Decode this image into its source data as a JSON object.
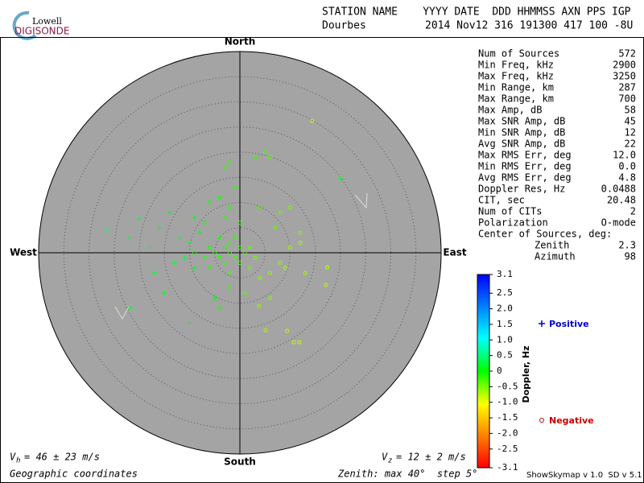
{
  "header": {
    "logo_top": "Lowell",
    "logo_bottom": "DIGISONDE",
    "columns": "STATION NAME    YYYY DATE  DDD HHMMSS AXN PPS IGP",
    "station": "Dourbes",
    "values": "2014 Nov12 316 191300 417 100 -8U"
  },
  "compass": {
    "north": "North",
    "south": "South",
    "east": "East",
    "west": "West"
  },
  "stats": [
    [
      "Num of Sources",
      "572"
    ],
    [
      "Min Freq, kHz",
      "2900"
    ],
    [
      "Max Freq, kHz",
      "3250"
    ],
    [
      "Min Range, km",
      "287"
    ],
    [
      "Max Range, km",
      "700"
    ],
    [
      "Max Amp, dB",
      "58"
    ],
    [
      "Max SNR Amp, dB",
      "45"
    ],
    [
      "Min SNR Amp, dB",
      "12"
    ],
    [
      "Avg SNR Amp, dB",
      "22"
    ],
    [
      "Max RMS Err, deg",
      "12.0"
    ],
    [
      "Min RMS Err, deg",
      "0.0"
    ],
    [
      "Avg RMS Err, deg",
      "4.8"
    ],
    [
      "Doppler Res, Hz",
      "0.0488"
    ],
    [
      "CIT, sec",
      "20.48"
    ],
    [
      "Num of CITs",
      "2"
    ],
    [
      "Polarization",
      "O-mode"
    ]
  ],
  "center": {
    "title": "Center of Sources, deg:",
    "rows": [
      [
        "Zenith",
        "2.3"
      ],
      [
        "Azimuth",
        "98"
      ]
    ]
  },
  "colorbar": {
    "label": "Doppler, Hz",
    "lim": [
      -3.1,
      3.1
    ],
    "ticks": [
      3.1,
      2.5,
      {
        "value": 2,
        "label": "2.0"
      },
      1.5,
      {
        "value": 1,
        "label": "1.0"
      },
      0.5,
      0,
      -0.5,
      {
        "value": -1,
        "label": "-1.0"
      },
      -1.5,
      {
        "value": -2,
        "label": "-2.0"
      },
      -2.5,
      -3.1
    ]
  },
  "legend": {
    "positive": "Positive",
    "negative": "Negative"
  },
  "footer": {
    "vh_v": "V",
    "vh_sub": "h",
    "vh_text": "= 46 ± 23 m/s",
    "vz_v": "V",
    "vz_sub": "z",
    "vz_text": "= 12 ± 2 m/s",
    "coordinates": "Geographic coordinates",
    "zenith": "Zenith: max 40°  step 5°",
    "version": "ShowSkymap v 1.0  SD v 5.1"
  },
  "sky": {
    "max_zenith": 40,
    "step": 5,
    "points": [
      [
        -2,
        0,
        -0.3
      ],
      [
        -3,
        1,
        -0.2
      ],
      [
        -1,
        -1,
        -0.4
      ],
      [
        0,
        1,
        -0.3
      ],
      [
        -4,
        -1,
        -0.2
      ],
      [
        -2,
        2,
        -0.3
      ],
      [
        1,
        0,
        -0.5
      ],
      [
        -5,
        0,
        -0.2
      ],
      [
        -3,
        -2,
        -0.3
      ],
      [
        0,
        -2,
        -0.4
      ],
      [
        2,
        1,
        -0.6
      ],
      [
        -1,
        3,
        -0.3
      ],
      [
        -6,
        1,
        -0.1
      ],
      [
        -7,
        -1,
        -0.2
      ],
      [
        -4,
        3,
        -0.2
      ],
      [
        3,
        -1,
        -0.7
      ],
      [
        2,
        -3,
        -0.6
      ],
      [
        -2,
        -4,
        -0.4
      ],
      [
        -6,
        -3,
        -0.2
      ],
      [
        -9,
        0,
        -0.1
      ],
      [
        -10,
        2,
        0.2
      ],
      [
        -11,
        -1,
        0.3
      ],
      [
        -8,
        4,
        0.1
      ],
      [
        -12,
        3,
        0.4
      ],
      [
        -13,
        -2,
        0.3
      ],
      [
        -9,
        -3,
        0.2
      ],
      [
        -7,
        6,
        -0.1
      ],
      [
        -3,
        7,
        -0.2
      ],
      [
        -2,
        9,
        -0.2
      ],
      [
        0,
        6,
        -0.3
      ],
      [
        -4,
        11,
        -0.1
      ],
      [
        -1,
        13,
        -0.2
      ],
      [
        -3,
        17,
        -0.3
      ],
      [
        3,
        19,
        -0.4
      ],
      [
        5,
        20,
        -0.4
      ],
      [
        6,
        19,
        -0.5
      ],
      [
        -2,
        18,
        -0.3
      ],
      [
        4,
        -5,
        -0.8
      ],
      [
        6,
        -4,
        -0.9
      ],
      [
        8,
        -2,
        -0.9
      ],
      [
        9,
        -3,
        -1.0
      ],
      [
        10,
        1,
        -0.9
      ],
      [
        12,
        2,
        -1.0
      ],
      [
        13,
        -4,
        -1.0
      ],
      [
        17.4,
        -2.9,
        -1.1
      ],
      [
        17.1,
        -6.4,
        -1.1
      ],
      [
        5.1,
        -15.4,
        -1.0
      ],
      [
        3.8,
        -10.6,
        -0.9
      ],
      [
        9.4,
        -15.5,
        -1.1
      ],
      [
        10.7,
        -17.8,
        -1.2
      ],
      [
        11.8,
        -17.8,
        -1.2
      ],
      [
        14.4,
        26.2,
        -1.2
      ],
      [
        20,
        14.7,
        0.3
      ],
      [
        -26.6,
        4.6,
        0.6
      ],
      [
        -20,
        6.7,
        0.3
      ],
      [
        -22,
        3,
        0.4
      ],
      [
        -21.8,
        -11,
        0.3
      ],
      [
        -10,
        -14,
        0.2
      ],
      [
        -5,
        -9,
        0.1
      ],
      [
        -15,
        -8,
        0.2
      ],
      [
        -17,
        -4,
        0.3
      ],
      [
        -18,
        1,
        0.4
      ],
      [
        4,
        9,
        -0.4
      ],
      [
        8,
        8,
        -0.6
      ],
      [
        10,
        9,
        -0.7
      ],
      [
        12,
        4,
        -0.8
      ],
      [
        7,
        5,
        -0.6
      ],
      [
        -6,
        10,
        -0.1
      ],
      [
        -9,
        7,
        0.1
      ],
      [
        -14,
        8,
        0.3
      ],
      [
        -16,
        5,
        0.2
      ],
      [
        1,
        -8,
        -0.5
      ],
      [
        -2,
        -7,
        -0.3
      ],
      [
        -4,
        -11,
        -0.2
      ],
      [
        6,
        -9,
        -0.8
      ]
    ]
  }
}
